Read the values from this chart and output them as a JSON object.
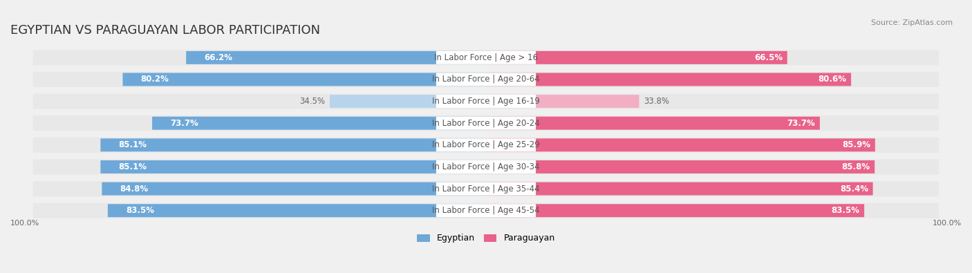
{
  "title": "EGYPTIAN VS PARAGUAYAN LABOR PARTICIPATION",
  "source": "Source: ZipAtlas.com",
  "categories": [
    "In Labor Force | Age > 16",
    "In Labor Force | Age 20-64",
    "In Labor Force | Age 16-19",
    "In Labor Force | Age 20-24",
    "In Labor Force | Age 25-29",
    "In Labor Force | Age 30-34",
    "In Labor Force | Age 35-44",
    "In Labor Force | Age 45-54"
  ],
  "egyptian_values": [
    66.2,
    80.2,
    34.5,
    73.7,
    85.1,
    85.1,
    84.8,
    83.5
  ],
  "paraguayan_values": [
    66.5,
    80.6,
    33.8,
    73.7,
    85.9,
    85.8,
    85.4,
    83.5
  ],
  "egyptian_color_full": "#6ea8d8",
  "egyptian_color_light": "#b8d4ec",
  "paraguayan_color_full": "#e8628a",
  "paraguayan_color_light": "#f2afc3",
  "background_color": "#f0f0f0",
  "bar_bg_color": "#ffffff",
  "row_bg_color": "#e8e8e8",
  "max_value": 100.0,
  "bar_height": 0.6,
  "title_fontsize": 13,
  "label_fontsize": 8.5,
  "value_fontsize": 8.5,
  "axis_label_left": "100.0%",
  "axis_label_right": "100.0%"
}
